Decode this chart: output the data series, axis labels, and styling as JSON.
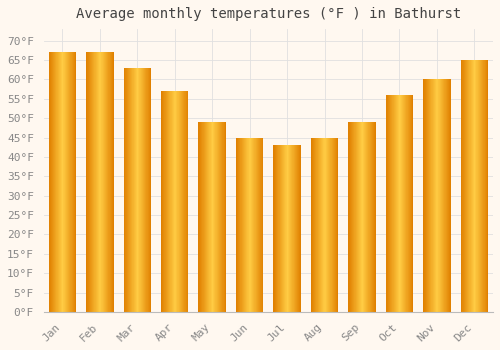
{
  "title": "Average monthly temperatures (°F ) in Bathurst",
  "months": [
    "Jan",
    "Feb",
    "Mar",
    "Apr",
    "May",
    "Jun",
    "Jul",
    "Aug",
    "Sep",
    "Oct",
    "Nov",
    "Dec"
  ],
  "values": [
    67,
    67,
    63,
    57,
    49,
    45,
    43,
    45,
    49,
    56,
    60,
    65
  ],
  "bar_color_main": "#FFA500",
  "bar_color_light": "#FFCC44",
  "bar_color_dark": "#E08000",
  "background_color": "#FFF8F0",
  "grid_color": "#E0E0E0",
  "ytick_labels": [
    "0°F",
    "5°F",
    "10°F",
    "15°F",
    "20°F",
    "25°F",
    "30°F",
    "35°F",
    "40°F",
    "45°F",
    "50°F",
    "55°F",
    "60°F",
    "65°F",
    "70°F"
  ],
  "ytick_values": [
    0,
    5,
    10,
    15,
    20,
    25,
    30,
    35,
    40,
    45,
    50,
    55,
    60,
    65,
    70
  ],
  "ylim": [
    0,
    73
  ],
  "title_fontsize": 10,
  "tick_fontsize": 8,
  "tick_color": "#888888",
  "font_family": "monospace"
}
